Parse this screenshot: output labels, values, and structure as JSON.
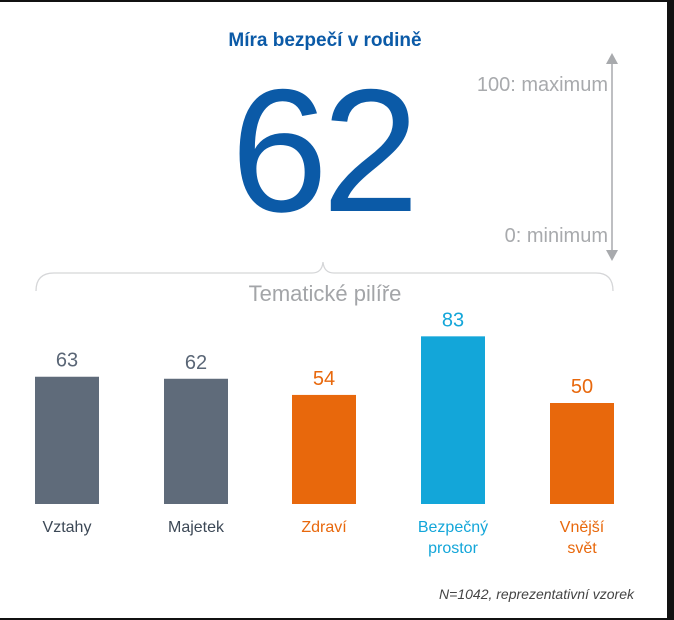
{
  "title": "Míra bezpečí v rodině",
  "score": "62",
  "scale": {
    "max_label": "100: maximum",
    "min_label": "0: minimum"
  },
  "pillars_label": "Tematické pilíře",
  "footnote": "N=1042, reprezentativní vzorek",
  "chart_data": {
    "type": "bar",
    "categories": [
      "Vztahy",
      "Majetek",
      "Zdraví",
      "Bezpečný prostor",
      "Vnější svět"
    ],
    "category_lines": [
      [
        "Vztahy"
      ],
      [
        "Majetek"
      ],
      [
        "Zdraví"
      ],
      [
        "Bezpečný",
        "prostor"
      ],
      [
        "Vnější",
        "svět"
      ]
    ],
    "values": [
      63,
      62,
      54,
      83,
      50
    ],
    "colors": [
      "#5f6b7a",
      "#5f6b7a",
      "#e8680c",
      "#13a6d9",
      "#e8680c"
    ],
    "label_colors": [
      "#5a6676",
      "#5a6676",
      "#e8680c",
      "#13a6d9",
      "#e8680c"
    ],
    "category_label_colors": [
      "#3c4856",
      "#3c4856",
      "#e8680c",
      "#13a6d9",
      "#e8680c"
    ],
    "ylim": [
      0,
      100
    ],
    "grid": false,
    "legend": false
  }
}
